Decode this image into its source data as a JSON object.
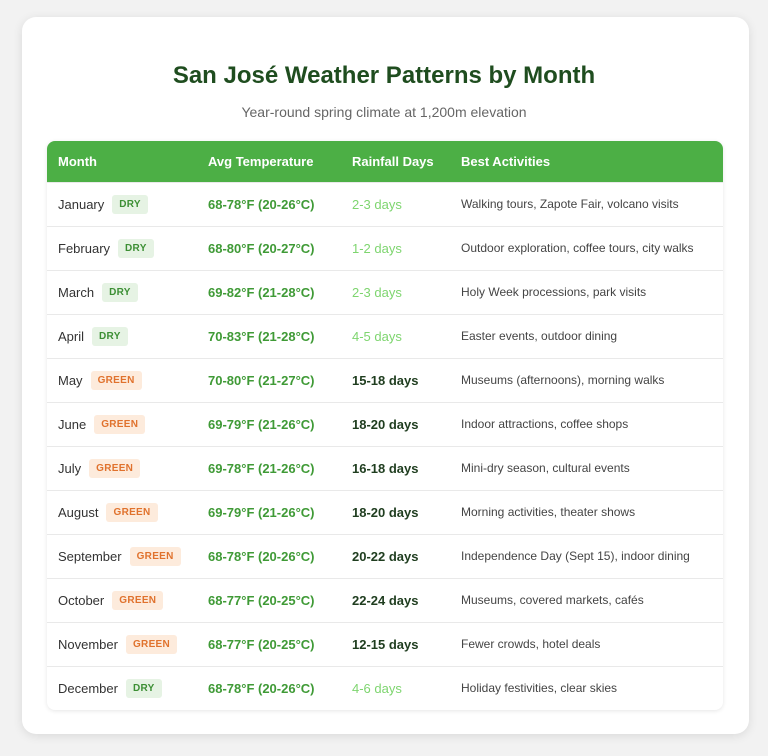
{
  "title": "San José Weather Patterns by Month",
  "subtitle": "Year-round spring climate at 1,200m elevation",
  "colors": {
    "header_bg": "#4caf45",
    "title": "#1f4d1f",
    "temp": "#3f9a36",
    "dry_badge_bg": "#e6f3e4",
    "dry_badge_text": "#3c8f34",
    "green_badge_bg": "#fdebdc",
    "green_badge_text": "#e0722d",
    "rain_dry": "#7ed56f",
    "rain_green": "#1f3d1f"
  },
  "table": {
    "headers": [
      "Month",
      "Avg Temperature",
      "Rainfall Days",
      "Best Activities"
    ],
    "rows": [
      {
        "month": "January",
        "season": "DRY",
        "temp": "68-78°F (20-26°C)",
        "rain": "2-3 days",
        "activities": "Walking tours, Zapote Fair, volcano visits"
      },
      {
        "month": "February",
        "season": "DRY",
        "temp": "68-80°F (20-27°C)",
        "rain": "1-2 days",
        "activities": "Outdoor exploration, coffee tours, city walks"
      },
      {
        "month": "March",
        "season": "DRY",
        "temp": "69-82°F (21-28°C)",
        "rain": "2-3 days",
        "activities": "Holy Week processions, park visits"
      },
      {
        "month": "April",
        "season": "DRY",
        "temp": "70-83°F (21-28°C)",
        "rain": "4-5 days",
        "activities": "Easter events, outdoor dining"
      },
      {
        "month": "May",
        "season": "GREEN",
        "temp": "70-80°F (21-27°C)",
        "rain": "15-18 days",
        "activities": "Museums (afternoons), morning walks"
      },
      {
        "month": "June",
        "season": "GREEN",
        "temp": "69-79°F (21-26°C)",
        "rain": "18-20 days",
        "activities": "Indoor attractions, coffee shops"
      },
      {
        "month": "July",
        "season": "GREEN",
        "temp": "69-78°F (21-26°C)",
        "rain": "16-18 days",
        "activities": "Mini-dry season, cultural events"
      },
      {
        "month": "August",
        "season": "GREEN",
        "temp": "69-79°F (21-26°C)",
        "rain": "18-20 days",
        "activities": "Morning activities, theater shows"
      },
      {
        "month": "September",
        "season": "GREEN",
        "temp": "68-78°F (20-26°C)",
        "rain": "20-22 days",
        "activities": "Independence Day (Sept 15), indoor dining"
      },
      {
        "month": "October",
        "season": "GREEN",
        "temp": "68-77°F (20-25°C)",
        "rain": "22-24 days",
        "activities": "Museums, covered markets, cafés"
      },
      {
        "month": "November",
        "season": "GREEN",
        "temp": "68-77°F (20-25°C)",
        "rain": "12-15 days",
        "activities": "Fewer crowds, hotel deals"
      },
      {
        "month": "December",
        "season": "DRY",
        "temp": "68-78°F (20-26°C)",
        "rain": "4-6 days",
        "activities": "Holiday festivities, clear skies"
      }
    ]
  }
}
